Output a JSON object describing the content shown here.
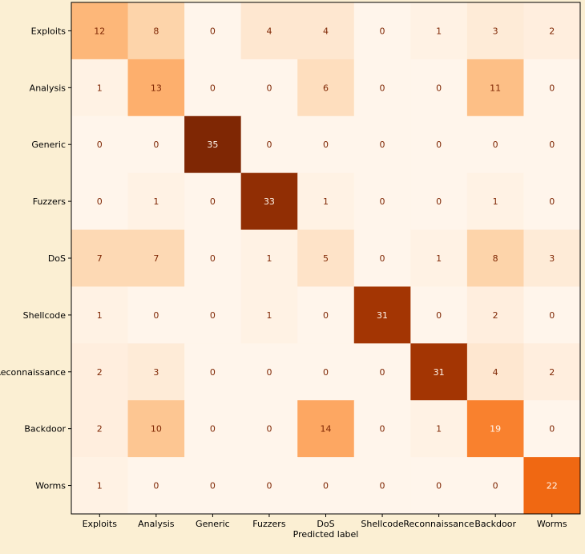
{
  "chart_data": {
    "type": "heatmap",
    "title": "",
    "xlabel": "Predicted label",
    "ylabel": "",
    "row_labels": [
      "Exploits",
      "Analysis",
      "Generic",
      "Fuzzers",
      "DoS",
      "Shellcode",
      "Reconnaissance",
      "Backdoor",
      "Worms"
    ],
    "col_labels": [
      "Exploits",
      "Analysis",
      "Generic",
      "Fuzzers",
      "DoS",
      "Shellcode",
      "Reconnaissance",
      "Backdoor",
      "Worms"
    ],
    "values": [
      [
        12,
        8,
        0,
        4,
        4,
        0,
        1,
        3,
        2
      ],
      [
        1,
        13,
        0,
        0,
        6,
        0,
        0,
        11,
        0
      ],
      [
        0,
        0,
        35,
        0,
        0,
        0,
        0,
        0,
        0
      ],
      [
        0,
        1,
        0,
        33,
        1,
        0,
        0,
        1,
        0
      ],
      [
        7,
        7,
        0,
        1,
        5,
        0,
        1,
        8,
        3
      ],
      [
        1,
        0,
        0,
        1,
        0,
        31,
        0,
        2,
        0
      ],
      [
        2,
        3,
        0,
        0,
        0,
        0,
        31,
        4,
        2
      ],
      [
        2,
        10,
        0,
        0,
        14,
        0,
        1,
        19,
        0
      ],
      [
        1,
        0,
        0,
        0,
        0,
        0,
        0,
        0,
        22
      ]
    ],
    "vmin": 0,
    "vmax": 35,
    "colormap": "Oranges",
    "grid": false
  },
  "colors": {
    "background": "#fbefd3",
    "text_dark": "#7f2704",
    "text_light": "#fff5eb",
    "axis": "#000000"
  }
}
